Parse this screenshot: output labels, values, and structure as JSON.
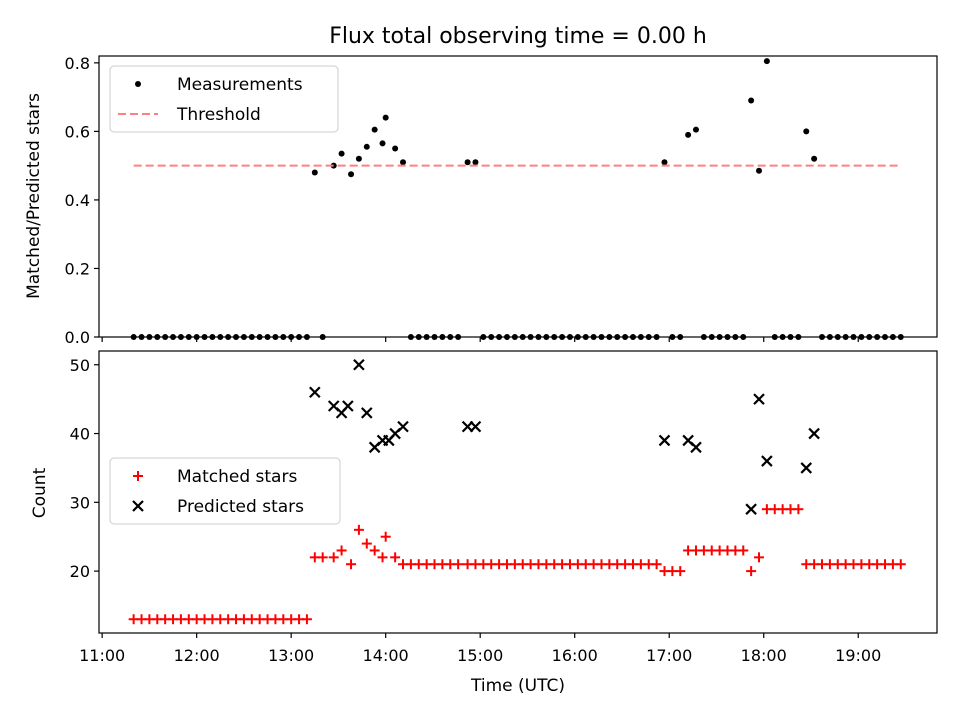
{
  "chart_data": [
    {
      "type": "scatter",
      "title": "Flux total observing time = 0.00 h",
      "xlabel": "",
      "ylabel": "Matched/Predicted stars",
      "xlim": [
        "10:58",
        "19:50"
      ],
      "ylim": [
        0,
        0.82
      ],
      "yticks": [
        "0.0",
        "0.2",
        "0.4",
        "0.6",
        "0.8"
      ],
      "grid": false,
      "legend_position": "upper-left",
      "series": [
        {
          "name": "Measurements",
          "marker": "dot",
          "color": "#000000",
          "points": [
            [
              "11:20",
              0
            ],
            [
              "11:25",
              0
            ],
            [
              "11:30",
              0
            ],
            [
              "11:35",
              0
            ],
            [
              "11:40",
              0
            ],
            [
              "11:45",
              0
            ],
            [
              "11:50",
              0
            ],
            [
              "11:55",
              0
            ],
            [
              "12:00",
              0
            ],
            [
              "12:05",
              0
            ],
            [
              "12:10",
              0
            ],
            [
              "12:15",
              0
            ],
            [
              "12:20",
              0
            ],
            [
              "12:25",
              0
            ],
            [
              "12:30",
              0
            ],
            [
              "12:35",
              0
            ],
            [
              "12:40",
              0
            ],
            [
              "12:45",
              0
            ],
            [
              "12:50",
              0
            ],
            [
              "12:55",
              0
            ],
            [
              "13:00",
              0
            ],
            [
              "13:05",
              0
            ],
            [
              "13:10",
              0
            ],
            [
              "13:15",
              0.48
            ],
            [
              "13:20",
              0
            ],
            [
              "13:27",
              0.5
            ],
            [
              "13:32",
              0.535
            ],
            [
              "13:38",
              0.475
            ],
            [
              "13:43",
              0.52
            ],
            [
              "13:48",
              0.555
            ],
            [
              "13:53",
              0.605
            ],
            [
              "13:58",
              0.565
            ],
            [
              "14:00",
              0.64
            ],
            [
              "14:06",
              0.55
            ],
            [
              "14:11",
              0.51
            ],
            [
              "14:16",
              0
            ],
            [
              "14:21",
              0
            ],
            [
              "14:26",
              0
            ],
            [
              "14:31",
              0
            ],
            [
              "14:36",
              0
            ],
            [
              "14:41",
              0
            ],
            [
              "14:46",
              0
            ],
            [
              "14:52",
              0.51
            ],
            [
              "14:57",
              0.51
            ],
            [
              "15:02",
              0
            ],
            [
              "15:07",
              0
            ],
            [
              "15:12",
              0
            ],
            [
              "15:17",
              0
            ],
            [
              "15:22",
              0
            ],
            [
              "15:27",
              0
            ],
            [
              "15:32",
              0
            ],
            [
              "15:37",
              0
            ],
            [
              "15:42",
              0
            ],
            [
              "15:47",
              0
            ],
            [
              "15:52",
              0
            ],
            [
              "15:57",
              0
            ],
            [
              "16:02",
              0
            ],
            [
              "16:07",
              0
            ],
            [
              "16:12",
              0
            ],
            [
              "16:17",
              0
            ],
            [
              "16:22",
              0
            ],
            [
              "16:27",
              0
            ],
            [
              "16:32",
              0
            ],
            [
              "16:37",
              0
            ],
            [
              "16:42",
              0
            ],
            [
              "16:47",
              0
            ],
            [
              "16:52",
              0
            ],
            [
              "16:57",
              0.51
            ],
            [
              "17:02",
              0
            ],
            [
              "17:07",
              0
            ],
            [
              "17:12",
              0.59
            ],
            [
              "17:17",
              0.605
            ],
            [
              "17:22",
              0
            ],
            [
              "17:27",
              0
            ],
            [
              "17:32",
              0
            ],
            [
              "17:37",
              0
            ],
            [
              "17:42",
              0
            ],
            [
              "17:47",
              0
            ],
            [
              "17:52",
              0.69
            ],
            [
              "17:57",
              0.485
            ],
            [
              "18:02",
              0.805
            ],
            [
              "18:07",
              0
            ],
            [
              "18:12",
              0
            ],
            [
              "18:17",
              0
            ],
            [
              "18:22",
              0
            ],
            [
              "18:27",
              0.6
            ],
            [
              "18:32",
              0.52
            ],
            [
              "18:37",
              0
            ],
            [
              "18:42",
              0
            ],
            [
              "18:47",
              0
            ],
            [
              "18:52",
              0
            ],
            [
              "18:57",
              0
            ],
            [
              "19:02",
              0
            ],
            [
              "19:07",
              0
            ],
            [
              "19:12",
              0
            ],
            [
              "19:17",
              0
            ],
            [
              "19:22",
              0
            ],
            [
              "19:27",
              0
            ]
          ]
        },
        {
          "name": "Threshold",
          "style": "dashed-line",
          "color": "#ff7f7f",
          "points": [
            [
              "11:20",
              0.5
            ],
            [
              "19:25",
              0.5
            ]
          ]
        }
      ]
    },
    {
      "type": "scatter",
      "title": "",
      "xlabel": "Time (UTC)",
      "ylabel": "Count",
      "xlim": [
        "10:58",
        "19:50"
      ],
      "ylim": [
        11,
        52
      ],
      "yticks": [
        "20",
        "30",
        "40",
        "50"
      ],
      "xticks": [
        "11:00",
        "12:00",
        "13:00",
        "14:00",
        "15:00",
        "16:00",
        "17:00",
        "18:00",
        "19:00"
      ],
      "grid": false,
      "legend_position": "center-left",
      "series": [
        {
          "name": "Matched stars",
          "marker": "plus",
          "color": "#ff0000",
          "points": [
            [
              "11:20",
              13
            ],
            [
              "11:25",
              13
            ],
            [
              "11:30",
              13
            ],
            [
              "11:35",
              13
            ],
            [
              "11:40",
              13
            ],
            [
              "11:45",
              13
            ],
            [
              "11:50",
              13
            ],
            [
              "11:55",
              13
            ],
            [
              "12:00",
              13
            ],
            [
              "12:05",
              13
            ],
            [
              "12:10",
              13
            ],
            [
              "12:15",
              13
            ],
            [
              "12:20",
              13
            ],
            [
              "12:25",
              13
            ],
            [
              "12:30",
              13
            ],
            [
              "12:35",
              13
            ],
            [
              "12:40",
              13
            ],
            [
              "12:45",
              13
            ],
            [
              "12:50",
              13
            ],
            [
              "12:55",
              13
            ],
            [
              "13:00",
              13
            ],
            [
              "13:05",
              13
            ],
            [
              "13:10",
              13
            ],
            [
              "13:15",
              22
            ],
            [
              "13:20",
              22
            ],
            [
              "13:27",
              22
            ],
            [
              "13:32",
              23
            ],
            [
              "13:38",
              21
            ],
            [
              "13:43",
              26
            ],
            [
              "13:48",
              24
            ],
            [
              "13:53",
              23
            ],
            [
              "13:58",
              22
            ],
            [
              "14:00",
              25
            ],
            [
              "14:06",
              22
            ],
            [
              "14:11",
              21
            ],
            [
              "14:16",
              21
            ],
            [
              "14:21",
              21
            ],
            [
              "14:26",
              21
            ],
            [
              "14:31",
              21
            ],
            [
              "14:36",
              21
            ],
            [
              "14:41",
              21
            ],
            [
              "14:46",
              21
            ],
            [
              "14:52",
              21
            ],
            [
              "14:57",
              21
            ],
            [
              "15:02",
              21
            ],
            [
              "15:07",
              21
            ],
            [
              "15:12",
              21
            ],
            [
              "15:17",
              21
            ],
            [
              "15:22",
              21
            ],
            [
              "15:27",
              21
            ],
            [
              "15:32",
              21
            ],
            [
              "15:37",
              21
            ],
            [
              "15:42",
              21
            ],
            [
              "15:47",
              21
            ],
            [
              "15:52",
              21
            ],
            [
              "15:57",
              21
            ],
            [
              "16:02",
              21
            ],
            [
              "16:07",
              21
            ],
            [
              "16:12",
              21
            ],
            [
              "16:17",
              21
            ],
            [
              "16:22",
              21
            ],
            [
              "16:27",
              21
            ],
            [
              "16:32",
              21
            ],
            [
              "16:37",
              21
            ],
            [
              "16:42",
              21
            ],
            [
              "16:47",
              21
            ],
            [
              "16:52",
              21
            ],
            [
              "16:57",
              20
            ],
            [
              "17:02",
              20
            ],
            [
              "17:07",
              20
            ],
            [
              "17:12",
              23
            ],
            [
              "17:17",
              23
            ],
            [
              "17:22",
              23
            ],
            [
              "17:27",
              23
            ],
            [
              "17:32",
              23
            ],
            [
              "17:37",
              23
            ],
            [
              "17:42",
              23
            ],
            [
              "17:47",
              23
            ],
            [
              "17:52",
              20
            ],
            [
              "17:57",
              22
            ],
            [
              "18:02",
              29
            ],
            [
              "18:07",
              29
            ],
            [
              "18:12",
              29
            ],
            [
              "18:17",
              29
            ],
            [
              "18:22",
              29
            ],
            [
              "18:27",
              21
            ],
            [
              "18:32",
              21
            ],
            [
              "18:37",
              21
            ],
            [
              "18:42",
              21
            ],
            [
              "18:47",
              21
            ],
            [
              "18:52",
              21
            ],
            [
              "18:57",
              21
            ],
            [
              "19:02",
              21
            ],
            [
              "19:07",
              21
            ],
            [
              "19:12",
              21
            ],
            [
              "19:17",
              21
            ],
            [
              "19:22",
              21
            ],
            [
              "19:27",
              21
            ]
          ]
        },
        {
          "name": "Predicted stars",
          "marker": "x",
          "color": "#000000",
          "points": [
            [
              "13:15",
              46
            ],
            [
              "13:27",
              44
            ],
            [
              "13:32",
              43
            ],
            [
              "13:36",
              44
            ],
            [
              "13:43",
              50
            ],
            [
              "13:48",
              43
            ],
            [
              "13:53",
              38
            ],
            [
              "13:58",
              39
            ],
            [
              "14:02",
              39
            ],
            [
              "14:06",
              40
            ],
            [
              "14:11",
              41
            ],
            [
              "14:52",
              41
            ],
            [
              "14:57",
              41
            ],
            [
              "16:57",
              39
            ],
            [
              "17:12",
              39
            ],
            [
              "17:17",
              38
            ],
            [
              "17:52",
              29
            ],
            [
              "17:57",
              45
            ],
            [
              "18:02",
              36
            ],
            [
              "18:27",
              35
            ],
            [
              "18:32",
              40
            ]
          ]
        }
      ]
    }
  ],
  "colors": {
    "matched": "#ff0000",
    "predicted": "#000000",
    "measurement": "#000000",
    "threshold": "#ff7f7f"
  }
}
